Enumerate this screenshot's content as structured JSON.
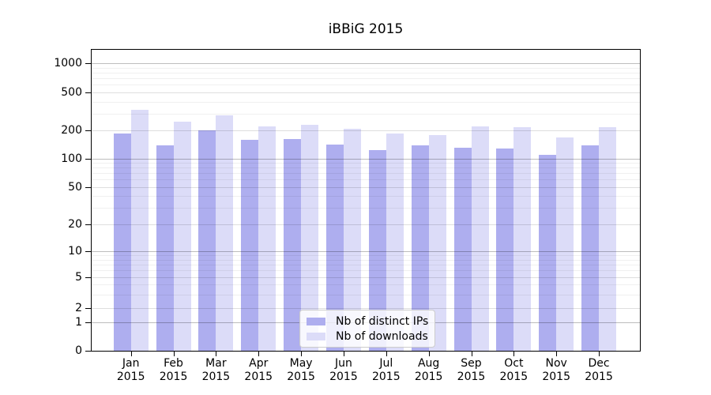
{
  "window": {
    "title": "iBBiG 2015"
  },
  "chart_data": {
    "type": "bar",
    "title": "iBBiG 2015",
    "xlabel": "",
    "ylabel": "",
    "y_scale": "symlog",
    "y_ticks": [
      0,
      1,
      2,
      5,
      10,
      20,
      50,
      100,
      200,
      500,
      1000
    ],
    "ylim": [
      0,
      1400
    ],
    "grid": true,
    "legend_position": "lower-center-inside",
    "months": [
      "Jan",
      "Feb",
      "Mar",
      "Apr",
      "May",
      "Jun",
      "Jul",
      "Aug",
      "Sep",
      "Oct",
      "Nov",
      "Dec"
    ],
    "year": "2015",
    "categories": [
      "Jan 2015",
      "Feb 2015",
      "Mar 2015",
      "Apr 2015",
      "May 2015",
      "Jun 2015",
      "Jul 2015",
      "Aug 2015",
      "Sep 2015",
      "Oct 2015",
      "Nov 2015",
      "Dec 2015"
    ],
    "series": [
      {
        "name": "Nb of distinct IPs",
        "color": "#aeaeef",
        "values": [
          185,
          138,
          200,
          159,
          161,
          140,
          124,
          137,
          131,
          128,
          111,
          139
        ]
      },
      {
        "name": "Nb of downloads",
        "color": "#dcdcf8",
        "values": [
          330,
          245,
          287,
          218,
          227,
          206,
          183,
          177,
          218,
          214,
          167,
          213
        ]
      }
    ]
  },
  "legend": {
    "items": [
      {
        "label": "Nb of distinct IPs",
        "color": "#aeaeef"
      },
      {
        "label": "Nb of downloads",
        "color": "#dcdcf8"
      }
    ]
  }
}
